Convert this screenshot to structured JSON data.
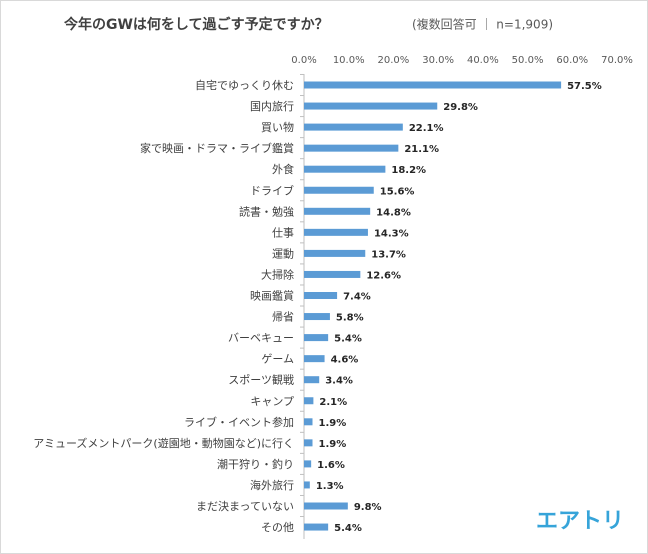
{
  "chart_data": {
    "type": "barh",
    "title": "今年のGWは何をして過ごす予定ですか？",
    "subtitle": "(複数回答可 ｜ n=1,909)",
    "categories": [
      "自宅でゆっくり休む",
      "国内旅行",
      "買い物",
      "家で映画・ドラマ・ライブ鑑賞",
      "外食",
      "ドライブ",
      "読書・勉強",
      "仕事",
      "運動",
      "大掃除",
      "映画鑑賞",
      "帰省",
      "バーベキュー",
      "ゲーム",
      "スポーツ観戦",
      "キャンプ",
      "ライブ・イベント参加",
      "アミューズメントパーク(遊園地・動物園など)に行く",
      "潮干狩り・釣り",
      "海外旅行",
      "まだ決まっていない",
      "その他"
    ],
    "values": [
      57.5,
      29.8,
      22.1,
      21.1,
      18.2,
      15.6,
      14.8,
      14.3,
      13.7,
      12.6,
      7.4,
      5.8,
      5.4,
      4.6,
      3.4,
      2.1,
      1.9,
      1.9,
      1.6,
      1.3,
      9.8,
      5.4
    ],
    "value_labels": [
      "57.5%",
      "29.8%",
      "22.1%",
      "21.1%",
      "18.2%",
      "15.6%",
      "14.8%",
      "14.3%",
      "13.7%",
      "12.6%",
      "7.4%",
      "5.8%",
      "5.4%",
      "4.6%",
      "3.4%",
      "2.1%",
      "1.9%",
      "1.9%",
      "1.6%",
      "1.3%",
      "9.8%",
      "5.4%"
    ],
    "color": "#5b9bd5",
    "xlim": [
      0,
      70
    ],
    "xticks": [
      {
        "value": 0,
        "label": "0.0%"
      },
      {
        "value": 10,
        "label": "10.0%"
      },
      {
        "value": 20,
        "label": "20.0%"
      },
      {
        "value": 30,
        "label": "30.0%"
      },
      {
        "value": 40,
        "label": "40.0%"
      },
      {
        "value": 50,
        "label": "50.0%"
      },
      {
        "value": 60,
        "label": "60.0%"
      },
      {
        "value": 70,
        "label": "70.0%"
      }
    ],
    "grid": false,
    "logo": "エアトリ"
  }
}
